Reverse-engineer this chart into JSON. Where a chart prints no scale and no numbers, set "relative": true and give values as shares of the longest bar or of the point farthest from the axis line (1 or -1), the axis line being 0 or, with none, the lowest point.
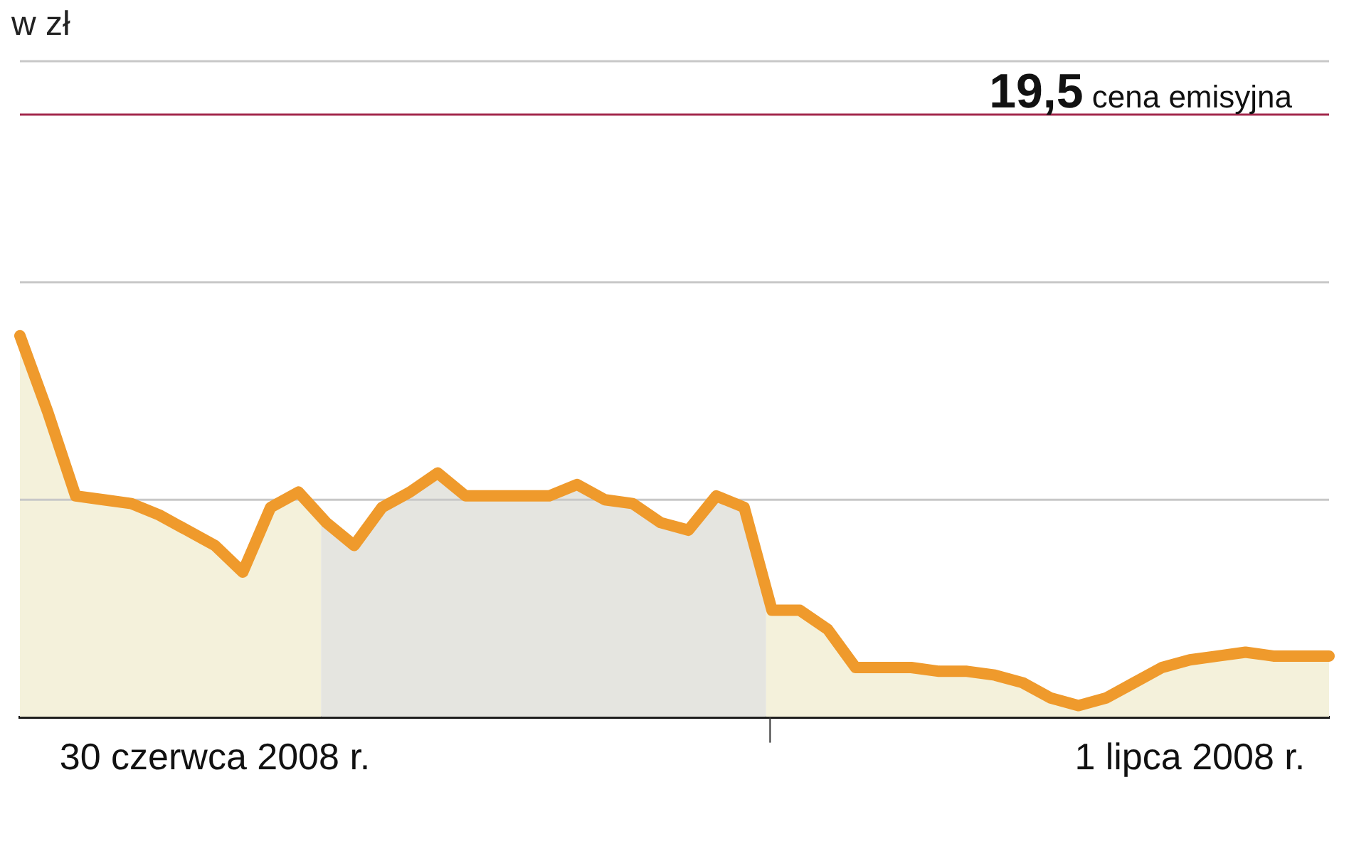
{
  "chart_data": {
    "type": "line",
    "title": "w zł",
    "relative": true,
    "categories": [
      null,
      null,
      null,
      null,
      null,
      null,
      null,
      "30 czerwca 2008 r.",
      null,
      null,
      null,
      null,
      null,
      null,
      null,
      null,
      null,
      null,
      null,
      null,
      null,
      null,
      null,
      null,
      null,
      null,
      null,
      null,
      null,
      null,
      null,
      null,
      null,
      null,
      null,
      null,
      null,
      null,
      null,
      null,
      null,
      null,
      "1 lipca 2008 r.",
      null,
      null,
      null,
      null,
      null
    ],
    "series": [
      {
        "color": "#ef9a2c",
        "values": [
          1.0,
          0.8,
          0.58,
          0.57,
          0.56,
          0.53,
          0.49,
          0.45,
          0.38,
          0.55,
          0.59,
          0.51,
          0.45,
          0.55,
          0.59,
          0.64,
          0.58,
          0.58,
          0.58,
          0.58,
          0.61,
          0.57,
          0.56,
          0.51,
          0.49,
          0.58,
          0.55,
          0.28,
          0.28,
          0.23,
          0.13,
          0.13,
          0.13,
          0.12,
          0.12,
          0.11,
          0.09,
          0.05,
          0.03,
          0.05,
          0.09,
          0.13,
          0.15,
          0.16,
          0.17,
          0.16,
          0.16,
          0.16
        ]
      }
    ],
    "ref_lines": [
      {
        "axis": "y",
        "value": 1.72,
        "color": "#c8c8c8"
      },
      {
        "axis": "y",
        "value": 1.58,
        "label": "19,5 cena emisyjna",
        "color": "#a3284c"
      },
      {
        "axis": "y",
        "value": 1.14,
        "color": "#c8c8c8"
      },
      {
        "axis": "y",
        "value": 0.57,
        "color": "#c8c8c8"
      }
    ],
    "marker": "none",
    "line_style": "solid",
    "legend": false,
    "grid": false
  }
}
